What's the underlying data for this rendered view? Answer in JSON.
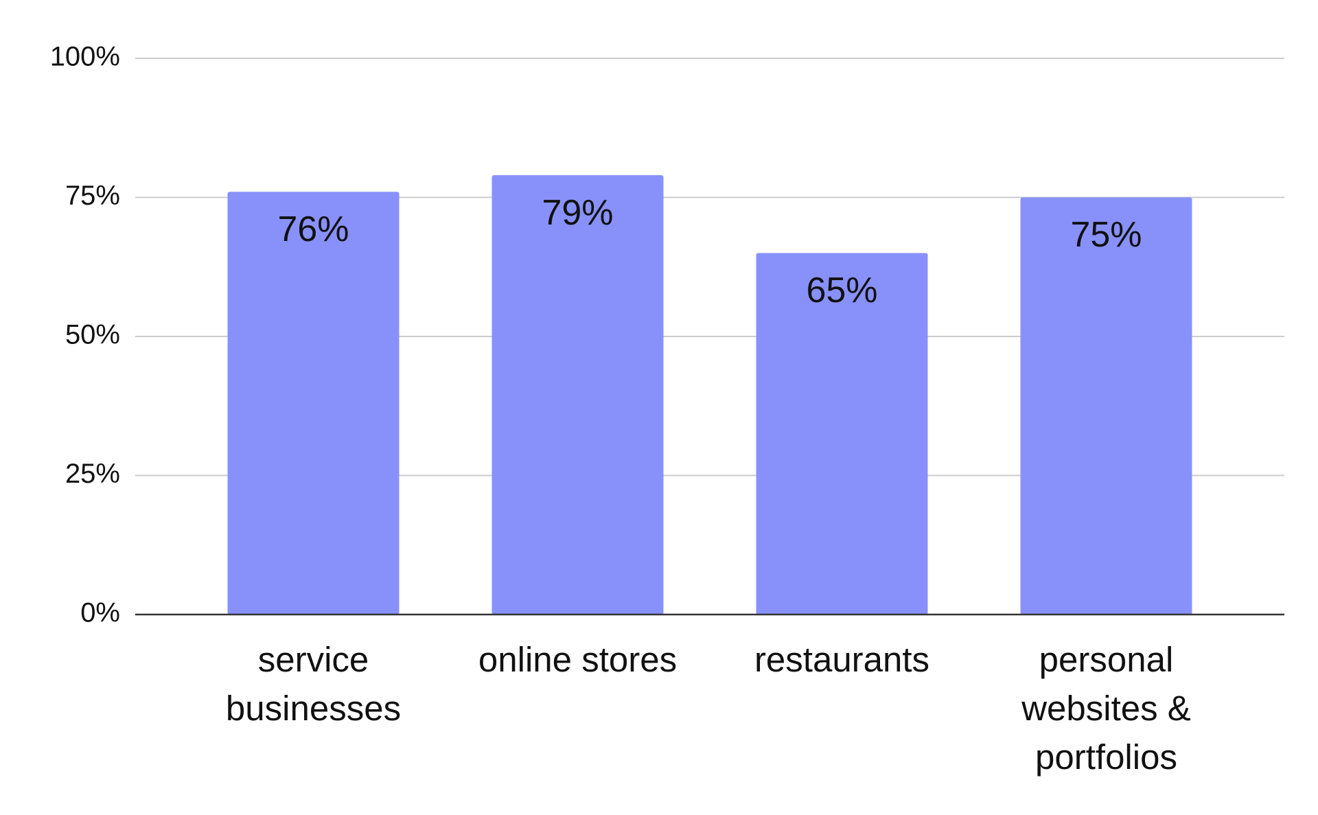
{
  "chart_data": {
    "type": "bar",
    "categories": [
      "service businesses",
      "online stores",
      "restaurants",
      "personal websites & portfolios"
    ],
    "values": [
      76,
      79,
      65,
      75
    ],
    "value_labels": [
      "76%",
      "79%",
      "65%",
      "75%"
    ],
    "color": "#8891fa",
    "ylim": [
      0,
      100
    ],
    "yticks": [
      {
        "value": 0,
        "label": "0%"
      },
      {
        "value": 25,
        "label": "25%"
      },
      {
        "value": 50,
        "label": "50%"
      },
      {
        "value": 75,
        "label": "75%"
      },
      {
        "value": 100,
        "label": "100%"
      }
    ],
    "grid": true
  }
}
